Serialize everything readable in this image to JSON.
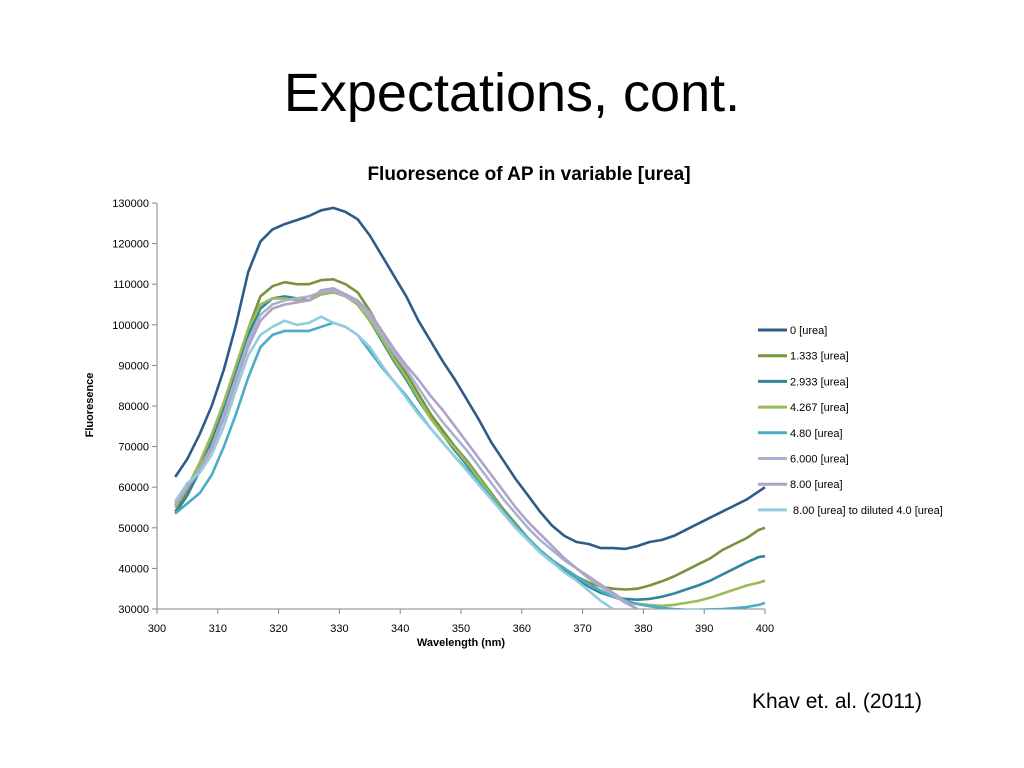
{
  "slide": {
    "title": "Expectations, cont.",
    "citation": "Khav et. al. (2011)"
  },
  "chart_data": {
    "type": "line",
    "title": "Fluoresence of AP in variable [urea]",
    "xlabel": "Wavelength (nm)",
    "ylabel": "Fluoresence",
    "xlim": [
      300,
      400
    ],
    "ylim": [
      30000,
      130000
    ],
    "xticks": [
      300,
      310,
      320,
      330,
      340,
      350,
      360,
      370,
      380,
      390,
      400
    ],
    "yticks": [
      30000,
      40000,
      50000,
      60000,
      70000,
      80000,
      90000,
      100000,
      110000,
      120000,
      130000
    ],
    "grid": false,
    "legend": "right",
    "series": [
      {
        "name": "0 [urea]",
        "color": "#2E5C8A",
        "x": [
          303,
          305,
          307,
          309,
          311,
          313,
          315,
          317,
          319,
          321,
          323,
          325,
          327,
          329,
          331,
          333,
          335,
          337,
          339,
          341,
          343,
          345,
          347,
          349,
          351,
          353,
          355,
          357,
          359,
          361,
          363,
          365,
          367,
          369,
          371,
          373,
          375,
          377,
          379,
          381,
          383,
          385,
          387,
          389,
          391,
          393,
          395,
          397,
          399,
          400
        ],
        "y": [
          62500,
          67000,
          73000,
          80000,
          89000,
          100000,
          113000,
          120500,
          123500,
          124800,
          125800,
          126800,
          128200,
          128800,
          127800,
          126000,
          122000,
          117000,
          112000,
          107000,
          101000,
          96000,
          91000,
          86500,
          81500,
          76500,
          71000,
          66500,
          62000,
          58000,
          54000,
          50500,
          48000,
          46500,
          46000,
          45000,
          45000,
          44800,
          45500,
          46500,
          47000,
          48000,
          49500,
          51000,
          52500,
          54000,
          55500,
          57000,
          59000,
          60000
        ]
      },
      {
        "name": "1.333 [urea]",
        "color": "#77933C",
        "x": [
          303,
          305,
          307,
          309,
          311,
          313,
          315,
          317,
          319,
          321,
          323,
          325,
          327,
          329,
          331,
          333,
          335,
          337,
          339,
          341,
          343,
          345,
          347,
          349,
          351,
          353,
          355,
          357,
          359,
          361,
          363,
          365,
          367,
          369,
          371,
          373,
          375,
          377,
          379,
          381,
          383,
          385,
          387,
          389,
          391,
          393,
          395,
          397,
          399,
          400
        ],
        "y": [
          54000,
          59000,
          65000,
          72000,
          80000,
          89000,
          99000,
          107000,
          109500,
          110500,
          110000,
          110000,
          111000,
          111200,
          110000,
          108000,
          103500,
          98000,
          92500,
          88000,
          83000,
          78000,
          74000,
          70000,
          66500,
          62500,
          58500,
          54500,
          51000,
          47500,
          44500,
          42000,
          40000,
          38000,
          36500,
          35500,
          35000,
          34800,
          35000,
          35800,
          36800,
          38000,
          39500,
          41000,
          42500,
          44500,
          46000,
          47500,
          49500,
          50000
        ]
      },
      {
        "name": "2.933 [urea]",
        "color": "#31859C",
        "x": [
          303,
          305,
          307,
          309,
          311,
          313,
          315,
          317,
          319,
          321,
          323,
          325,
          327,
          329,
          331,
          333,
          335,
          337,
          339,
          341,
          343,
          345,
          347,
          349,
          351,
          353,
          355,
          357,
          359,
          361,
          363,
          365,
          367,
          369,
          371,
          373,
          375,
          377,
          379,
          381,
          383,
          385,
          387,
          389,
          391,
          393,
          395,
          397,
          399,
          400
        ],
        "y": [
          53500,
          58000,
          64000,
          71000,
          79000,
          88000,
          97500,
          104000,
          106500,
          107000,
          106500,
          106000,
          107500,
          108000,
          107500,
          105000,
          101000,
          96000,
          91000,
          86500,
          81500,
          77000,
          73000,
          69000,
          65500,
          61500,
          57500,
          53500,
          50000,
          47000,
          44000,
          41500,
          39500,
          37500,
          35500,
          34000,
          33000,
          32500,
          32300,
          32500,
          33000,
          33800,
          34800,
          35800,
          37000,
          38500,
          40000,
          41500,
          42800,
          43000
        ]
      },
      {
        "name": "4.267 [urea]",
        "color": "#9BBB59",
        "x": [
          303,
          305,
          307,
          309,
          311,
          313,
          315,
          317,
          319,
          321,
          323,
          325,
          327,
          329,
          331,
          333,
          335,
          337,
          339,
          341,
          343,
          345,
          347,
          349,
          351,
          353,
          355,
          357,
          359,
          361,
          363,
          365,
          367,
          369,
          371,
          373,
          375,
          377,
          379,
          381,
          383,
          385,
          387,
          389,
          391,
          393,
          395,
          397,
          399,
          400
        ],
        "y": [
          55000,
          60000,
          66000,
          73000,
          81000,
          90000,
          99000,
          105000,
          106500,
          106500,
          106000,
          106000,
          107500,
          108000,
          107000,
          105000,
          101000,
          96500,
          91500,
          87000,
          82000,
          77000,
          73000,
          69500,
          66000,
          62000,
          58000,
          54000,
          50500,
          47000,
          44500,
          42000,
          40000,
          38000,
          36000,
          34500,
          33000,
          32000,
          31300,
          31000,
          30800,
          31000,
          31500,
          32000,
          32800,
          33800,
          34800,
          35800,
          36500,
          37000
        ]
      },
      {
        "name": "4.80 [urea]",
        "color": "#4BACC6",
        "x": [
          303,
          305,
          307,
          309,
          311,
          313,
          315,
          317,
          319,
          321,
          323,
          325,
          327,
          329,
          331,
          333,
          335,
          337,
          339,
          341,
          343,
          345,
          347,
          349,
          351,
          353,
          355,
          357,
          359,
          361,
          363,
          365,
          367,
          369,
          371,
          373,
          375,
          377,
          379,
          381,
          383,
          385,
          387,
          389,
          391,
          393,
          395,
          397,
          399,
          400
        ],
        "y": [
          53500,
          56000,
          58500,
          63000,
          70000,
          78000,
          87000,
          94500,
          97500,
          98500,
          98500,
          98500,
          99500,
          100500,
          99500,
          97500,
          93500,
          89500,
          86000,
          82500,
          78500,
          74500,
          71000,
          67500,
          64500,
          61000,
          57500,
          54000,
          50500,
          47500,
          44500,
          42000,
          40000,
          38000,
          36000,
          34500,
          33000,
          32000,
          31200,
          30700,
          30300,
          30000,
          29800,
          29800,
          29900,
          30000,
          30200,
          30500,
          31000,
          31500
        ]
      },
      {
        "name": "6.000 [urea]",
        "color": "#A5B3CF",
        "x": [
          303,
          305,
          307,
          309,
          311,
          313,
          315,
          317,
          319,
          321,
          323,
          325,
          327,
          329,
          331,
          333,
          335,
          337,
          339,
          341,
          343,
          345,
          347,
          349,
          351,
          353,
          355,
          357,
          359,
          361,
          363,
          365,
          367,
          369,
          371,
          373,
          375,
          377,
          379
        ],
        "y": [
          56000,
          60000,
          64500,
          70000,
          78000,
          87000,
          96000,
          102500,
          105000,
          106000,
          106500,
          107000,
          108000,
          108500,
          107000,
          105500,
          102000,
          97500,
          93000,
          89000,
          84500,
          80000,
          76000,
          72500,
          69000,
          65000,
          61000,
          57000,
          53500,
          50000,
          47000,
          44500,
          42000,
          40000,
          37500,
          35500,
          33500,
          31500,
          30000
        ]
      },
      {
        "name": "8.00 [urea]",
        "color": "#B3A2C7",
        "x": [
          303,
          305,
          307,
          309,
          311,
          313,
          315,
          317,
          319,
          321,
          323,
          325,
          327,
          329,
          331,
          333,
          335,
          337,
          339,
          341,
          343,
          345,
          347,
          349,
          351,
          353,
          355,
          357,
          359,
          361,
          363,
          365,
          367,
          369,
          371,
          373,
          375,
          377,
          379
        ],
        "y": [
          55500,
          60000,
          64000,
          69500,
          77000,
          86000,
          94500,
          101000,
          104000,
          105000,
          105500,
          106000,
          108500,
          109000,
          107500,
          106000,
          103000,
          98500,
          94000,
          90000,
          86500,
          82500,
          79000,
          75000,
          71000,
          67000,
          63000,
          59000,
          55000,
          51500,
          48500,
          45500,
          42500,
          40000,
          38000,
          36000,
          34000,
          32000,
          30000
        ]
      },
      {
        "name": "8.00 [urea] to diluted 4.0 [urea]",
        "color": "#93CDDD",
        "x": [
          303,
          305,
          307,
          309,
          311,
          313,
          315,
          317,
          319,
          321,
          323,
          325,
          327,
          329,
          331,
          333,
          335,
          337,
          339,
          341,
          343,
          345,
          347,
          349,
          351,
          353,
          355,
          357,
          359,
          361,
          363,
          365,
          367,
          369,
          371,
          373,
          375
        ],
        "y": [
          56500,
          61000,
          63500,
          68000,
          75000,
          84000,
          92500,
          97500,
          99500,
          101000,
          100000,
          100500,
          102000,
          100500,
          99500,
          97500,
          94500,
          90000,
          86000,
          82000,
          78000,
          74500,
          71000,
          67500,
          64000,
          60500,
          57000,
          53500,
          50000,
          47000,
          44000,
          41500,
          39000,
          37000,
          34500,
          32000,
          30000
        ]
      }
    ]
  }
}
